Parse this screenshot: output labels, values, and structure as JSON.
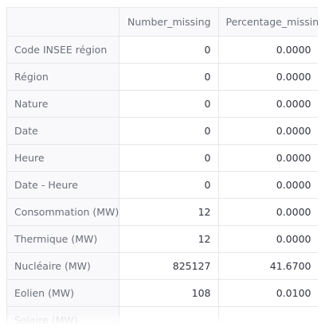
{
  "table": {
    "columns": [
      "",
      "Number_missing",
      "Percentage_missing"
    ],
    "rows": [
      {
        "label": "Code INSEE région",
        "number": "0",
        "pct": "0.0000"
      },
      {
        "label": "Région",
        "number": "0",
        "pct": "0.0000"
      },
      {
        "label": "Nature",
        "number": "0",
        "pct": "0.0000"
      },
      {
        "label": "Date",
        "number": "0",
        "pct": "0.0000"
      },
      {
        "label": "Heure",
        "number": "0",
        "pct": "0.0000"
      },
      {
        "label": "Date - Heure",
        "number": "0",
        "pct": "0.0000"
      },
      {
        "label": "Consommation (MW)",
        "number": "12",
        "pct": "0.0000"
      },
      {
        "label": "Thermique (MW)",
        "number": "12",
        "pct": "0.0000"
      },
      {
        "label": "Nucléaire (MW)",
        "number": "825127",
        "pct": "41.6700"
      },
      {
        "label": "Eolien (MW)",
        "number": "108",
        "pct": "0.0100"
      },
      {
        "label": "Solaire (MW)",
        "number": "",
        "pct": ""
      }
    ]
  }
}
